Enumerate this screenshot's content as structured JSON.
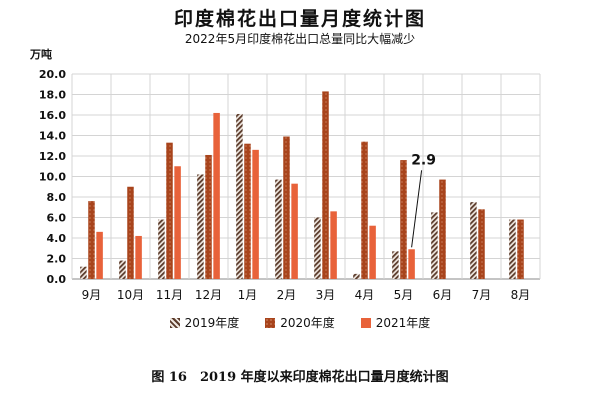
{
  "chart_data": {
    "type": "bar",
    "title": "印度棉花出口量月度统计图",
    "subtitle": "2022年5月印度棉花出口总量同比大幅减少",
    "ylabel": "万吨",
    "xlabel": "",
    "ylim": [
      0,
      20
    ],
    "yticks": [
      "0.0",
      "2.0",
      "4.0",
      "6.0",
      "8.0",
      "10.0",
      "12.0",
      "14.0",
      "16.0",
      "18.0",
      "20.0"
    ],
    "grid": true,
    "legend_position": "bottom",
    "categories": [
      "9月",
      "10月",
      "11月",
      "12月",
      "1月",
      "2月",
      "3月",
      "4月",
      "5月",
      "6月",
      "7月",
      "8月"
    ],
    "series": [
      {
        "name": "2019年度",
        "color": "#5a3a2a",
        "pattern": "hatch",
        "values": [
          1.2,
          1.8,
          5.8,
          10.2,
          16.1,
          9.7,
          6.0,
          0.5,
          2.7,
          6.5,
          7.5,
          5.8
        ]
      },
      {
        "name": "2020年度",
        "color": "#a8441c",
        "pattern": "dots",
        "values": [
          7.6,
          9.0,
          13.3,
          12.1,
          13.2,
          13.9,
          18.3,
          13.4,
          11.6,
          9.7,
          6.8,
          5.8
        ]
      },
      {
        "name": "2021年度",
        "color": "#e8623a",
        "pattern": "solid",
        "values": [
          4.6,
          4.2,
          11.0,
          16.2,
          12.6,
          9.3,
          6.6,
          5.2,
          2.9,
          null,
          null,
          null
        ]
      }
    ],
    "annotations": [
      {
        "text": "2.9",
        "category": "5月",
        "series": "2021年度"
      }
    ]
  },
  "caption": "图 16　2019 年度以来印度棉花出口量月度统计图"
}
